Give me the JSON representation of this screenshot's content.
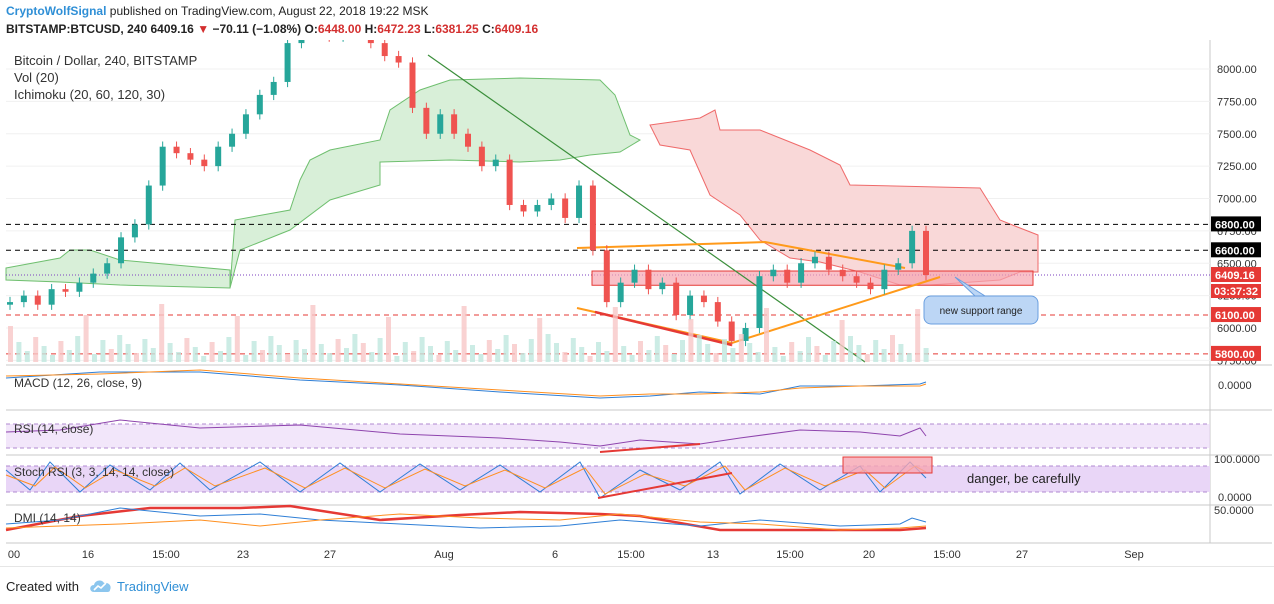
{
  "header": {
    "author": "CryptoWolfSignal",
    "published_text": "published on TradingView.com, August 22, 2018 19:22 MSK",
    "symbol": "BITSTAMP:BTCUSD, 240",
    "last": "6409.16",
    "change": "−70.11 (−1.08%)",
    "o_label": "O:",
    "o_value": "6448.00",
    "h_label": "H:",
    "h_value": "6472.23",
    "l_label": "L:",
    "l_value": "6381.25",
    "c_label": "C:",
    "c_value": "6409.16"
  },
  "legend": {
    "title": "Bitcoin / Dollar, 240, BITSTAMP",
    "vol": "Vol (20)",
    "ichimoku": "Ichimoku (20, 60, 120, 30)",
    "macd": "MACD (12, 26, close, 9)",
    "rsi": "RSI (14, close)",
    "stoch": "Stoch RSI (3, 3, 14, 14, close)",
    "dmi": "DMI (14, 14)"
  },
  "annotations": {
    "support": "new support range",
    "danger": "danger, be carefully"
  },
  "footer": {
    "created": "Created with",
    "brand": "TradingView"
  },
  "colors": {
    "up": "#26a69a",
    "down": "#ef5350",
    "cloud_green": "#d8efd8",
    "cloud_red": "#f9d8d8",
    "support_box": "#f6a5b1",
    "triangle": "#ff9a1a",
    "trendline": "#3b8f3b",
    "stoch_bg": "#e9d6f7",
    "label_red": "#e53935"
  },
  "chart_data": {
    "type": "candlestick",
    "price_axis": {
      "ticks": [
        "8000.00",
        "7750.00",
        "7500.00",
        "7250.00",
        "7000.00",
        "6750.00",
        "6500.00",
        "6250.00",
        "6000.00",
        "5750.00"
      ],
      "tick_values": [
        8000,
        7750,
        7500,
        7250,
        7000,
        6750,
        6500,
        6250,
        6000,
        5750
      ]
    },
    "levels": [
      {
        "label": "6800.00",
        "value": 6800,
        "color": "#000000"
      },
      {
        "label": "6600.00",
        "value": 6600,
        "color": "#000000"
      },
      {
        "label": "6409.16",
        "value": 6409.16,
        "color": "#e53935"
      },
      {
        "label": "6100.00",
        "value": 6100,
        "color": "#e53935"
      },
      {
        "label": "5800.00",
        "value": 5800,
        "color": "#e53935"
      }
    ],
    "countdown": "03:37:32",
    "support_range": [
      6330,
      6440
    ],
    "time_axis": [
      "00",
      "16",
      "15:00",
      "23",
      "27",
      "Aug",
      "6",
      "15:00",
      "13",
      "15:00",
      "20",
      "15:00",
      "27",
      "Sep"
    ],
    "macd_ticks": [
      "0.0000"
    ],
    "stoch_ticks": [
      "100.0000",
      "0.0000"
    ],
    "dmi_ticks": [
      "50.0000"
    ],
    "candles": [
      6200,
      6250,
      6180,
      6300,
      6280,
      6350,
      6420,
      6500,
      6700,
      6800,
      7100,
      7400,
      7350,
      7300,
      7250,
      7400,
      7500,
      7650,
      7800,
      7900,
      8200,
      8350,
      8300,
      8250,
      8300,
      8350,
      8200,
      8100,
      8050,
      7700,
      7500,
      7650,
      7500,
      7400,
      7250,
      7300,
      6950,
      6900,
      6950,
      7000,
      6850,
      7100,
      6600,
      6200,
      6350,
      6450,
      6300,
      6350,
      6100,
      6250,
      6200,
      6050,
      5900,
      6000,
      6400,
      6450,
      6350,
      6500,
      6550,
      6450,
      6400,
      6350,
      6300,
      6450,
      6500,
      6750,
      6409.16
    ]
  }
}
